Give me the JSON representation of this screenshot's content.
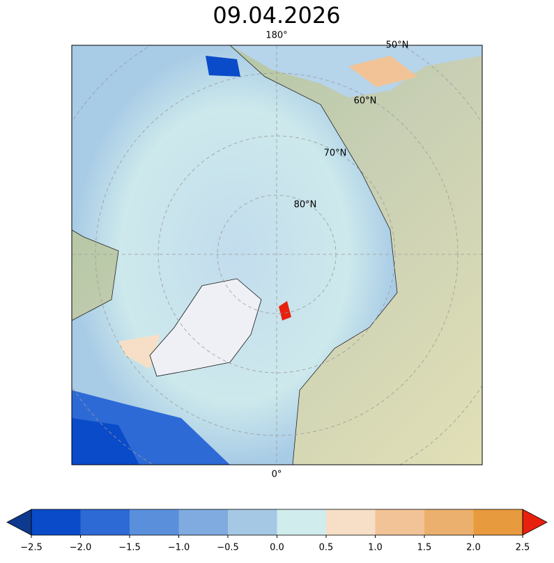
{
  "title": "09.04.2026",
  "map": {
    "lon_labels": [
      "180°",
      "0°"
    ],
    "lat_labels": [
      "50°N",
      "60°N",
      "70°N",
      "80°N"
    ]
  },
  "colorbar": {
    "ticks": [
      {
        "value": -2.5,
        "label": "−2.5"
      },
      {
        "value": -2,
        "label": "−2.0"
      },
      {
        "value": -1.5,
        "label": "−1.5"
      },
      {
        "value": -1,
        "label": "−1.0"
      },
      {
        "value": -0.5,
        "label": "−0.5"
      },
      {
        "value": 0,
        "label": "0.0"
      },
      0.5,
      {
        "value": 1,
        "label": "1.0"
      },
      1.5,
      {
        "value": 2,
        "label": "2.0"
      },
      2.5
    ],
    "colors": [
      "#0a4bc9",
      "#2e6ad6",
      "#5a8fdc",
      "#80abe0",
      "#a5c9e4",
      "#d1ecec",
      "#f6dfc6",
      "#f1c396",
      "#ebb06e",
      "#e79a3e"
    ],
    "extend_colors": [
      "#0d3a8e",
      "#e8200e"
    ]
  }
}
